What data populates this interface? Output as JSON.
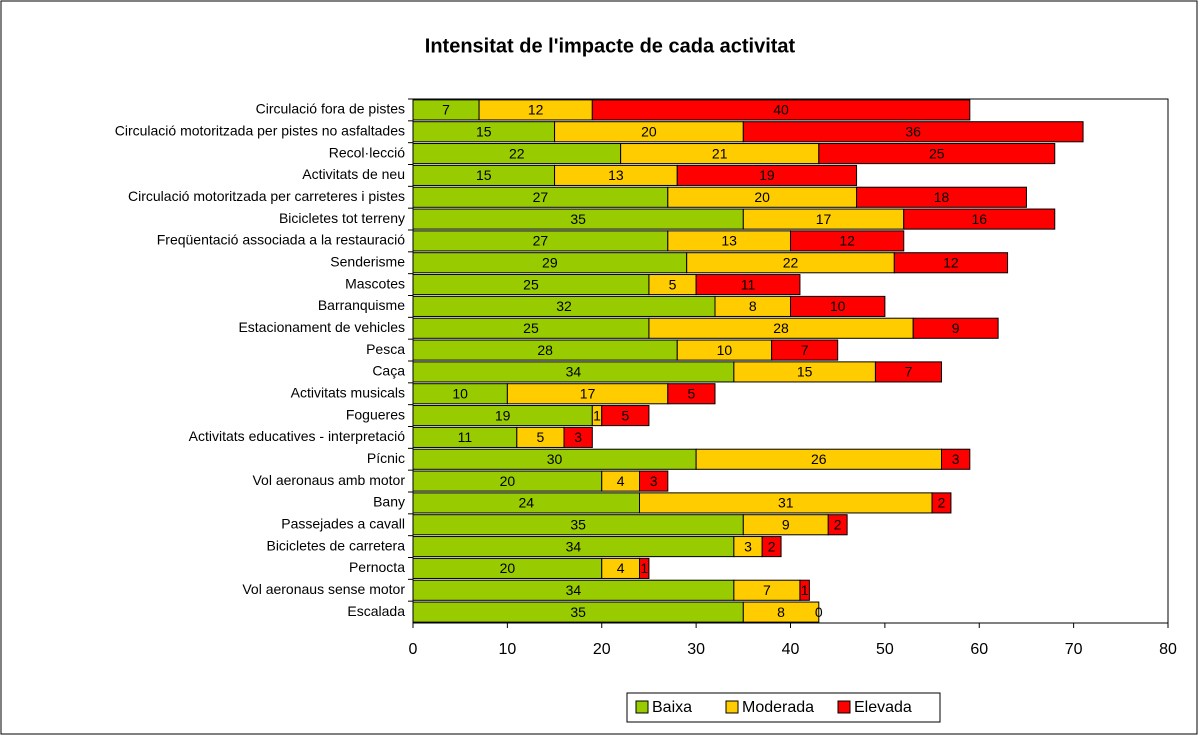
{
  "chart_data": {
    "type": "stacked_barh",
    "title": "Intensitat de l'impacte de cada activitat",
    "categories": [
      "Circulació fora de pistes",
      "Circulació motoritzada per pistes no asfaltades",
      "Recol·lecció",
      "Activitats de neu",
      "Circulació motoritzada per carreteres i pistes",
      "Bicicletes tot terreny",
      "Freqüentació associada a la restauració",
      "Senderisme",
      "Mascotes",
      "Barranquisme",
      "Estacionament de vehicles",
      "Pesca",
      "Caça",
      "Activitats musicals",
      "Fogueres",
      "Activitats educatives - interpretació",
      "Pícnic",
      "Vol aeronaus amb motor",
      "Bany",
      "Passejades a cavall",
      "Bicicletes de carretera",
      "Pernocta",
      "Vol aeronaus sense motor",
      "Escalada"
    ],
    "series": [
      {
        "name": "Baixa",
        "color": "#99cc00",
        "values": [
          7,
          15,
          22,
          15,
          27,
          35,
          27,
          29,
          25,
          32,
          25,
          28,
          34,
          10,
          19,
          11,
          30,
          20,
          24,
          35,
          34,
          20,
          34,
          35
        ]
      },
      {
        "name": "Moderada",
        "color": "#ffcc00",
        "values": [
          12,
          20,
          21,
          13,
          20,
          17,
          13,
          22,
          5,
          8,
          28,
          10,
          15,
          17,
          1,
          5,
          26,
          4,
          31,
          9,
          3,
          4,
          7,
          8
        ]
      },
      {
        "name": "Elevada",
        "color": "#ff0000",
        "values": [
          40,
          36,
          25,
          19,
          18,
          16,
          12,
          12,
          11,
          10,
          9,
          7,
          7,
          5,
          5,
          3,
          3,
          3,
          2,
          2,
          2,
          1,
          1,
          0
        ]
      }
    ],
    "xlim": [
      0,
      80
    ],
    "xticks": [
      0,
      10,
      20,
      30,
      40,
      50,
      60,
      70,
      80
    ],
    "legend": "bottom"
  }
}
